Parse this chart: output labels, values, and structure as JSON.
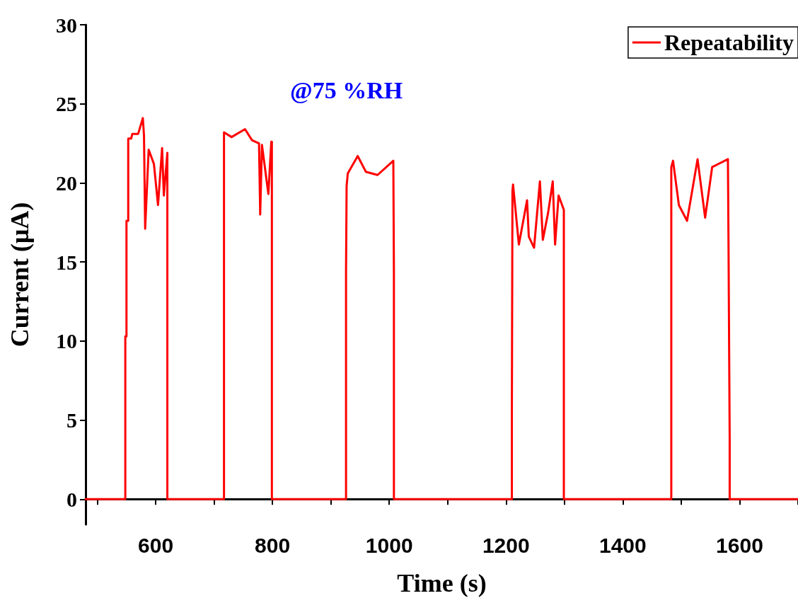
{
  "chart_data": {
    "type": "line",
    "xlabel": "Time (s)",
    "ylabel": "Current (μA)",
    "annotations": [
      "@75 %RH"
    ],
    "legend": "top right",
    "grid": false,
    "marker": "none",
    "line_style": "solid",
    "xlim": [
      480,
      1700
    ],
    "xticks": [
      {
        "value": 500,
        "label": null
      },
      600,
      {
        "value": 700,
        "label": null
      },
      800,
      {
        "value": 900,
        "label": null
      },
      1000,
      {
        "value": 1100,
        "label": null
      },
      1200,
      {
        "value": 1300,
        "label": null
      },
      1400,
      {
        "value": 1500,
        "label": null
      },
      1600,
      {
        "value": 1700,
        "label": null
      }
    ],
    "ylim": [
      -1.6,
      30
    ],
    "yticks": [
      0,
      5,
      10,
      15,
      20,
      25,
      30
    ],
    "series": [
      {
        "name": "Repeatability",
        "color": "#ff0000",
        "x": [
          480,
          548,
          548,
          550,
          550,
          553,
          553,
          558,
          560,
          570,
          578,
          580,
          582,
          588,
          597,
          604,
          611,
          614,
          620,
          620,
          717,
          717,
          730,
          753,
          765,
          777,
          779,
          782,
          793,
          798,
          799,
          799,
          926,
          926,
          927,
          929,
          946,
          960,
          980,
          1007,
          1008,
          1008,
          1210,
          1210,
          1211,
          1212,
          1222,
          1236,
          1239,
          1248,
          1258,
          1263,
          1272,
          1280,
          1284,
          1290,
          1299,
          1299,
          1483,
          1483,
          1486,
          1496,
          1510,
          1528,
          1541,
          1553,
          1580,
          1581,
          1583,
          1583,
          1700
        ],
        "values": [
          0,
          0,
          10.3,
          10.3,
          17.6,
          17.6,
          22.8,
          22.8,
          23.1,
          23.1,
          24.1,
          23,
          17.1,
          22.1,
          21.2,
          18.6,
          22.2,
          19.2,
          21.9,
          0,
          0,
          23.2,
          22.9,
          23.4,
          22.7,
          22.5,
          18,
          22.4,
          19.3,
          22.6,
          22.6,
          0,
          0,
          14.4,
          19.8,
          20.6,
          21.7,
          20.7,
          20.5,
          21.4,
          14.2,
          0,
          0,
          5.7,
          19.5,
          19.9,
          16.1,
          18.9,
          16.6,
          15.9,
          20.1,
          16.4,
          18.1,
          20.1,
          16.1,
          19.2,
          18.3,
          0,
          0,
          21,
          21.4,
          18.6,
          17.6,
          21.5,
          17.8,
          21,
          21.5,
          16.2,
          3.8,
          0,
          0
        ]
      }
    ]
  }
}
